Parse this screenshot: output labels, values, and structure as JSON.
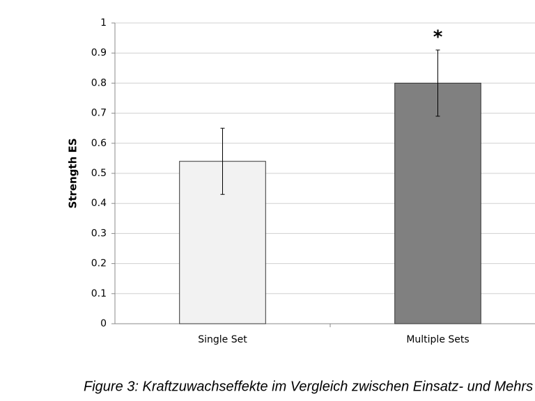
{
  "chart_data": {
    "type": "bar",
    "y_label": "Strength ES",
    "categories": [
      "Single Set",
      "Multiple Sets"
    ],
    "values": [
      0.54,
      0.8
    ],
    "errors": [
      0.11,
      0.11
    ],
    "colors": [
      "#f2f2f2",
      "#808080"
    ],
    "annotation": "*",
    "annotation_category": 1,
    "ylim": [
      0,
      1
    ],
    "yticks": [
      0,
      0.1,
      0.2,
      0.3,
      0.4,
      0.5,
      0.6,
      0.7,
      0.8,
      0.9,
      1
    ],
    "grid": true,
    "caption": "Figure 3: Kraftzuwachseffekte im Vergleich zwischen Einsatz- und Mehrs"
  }
}
